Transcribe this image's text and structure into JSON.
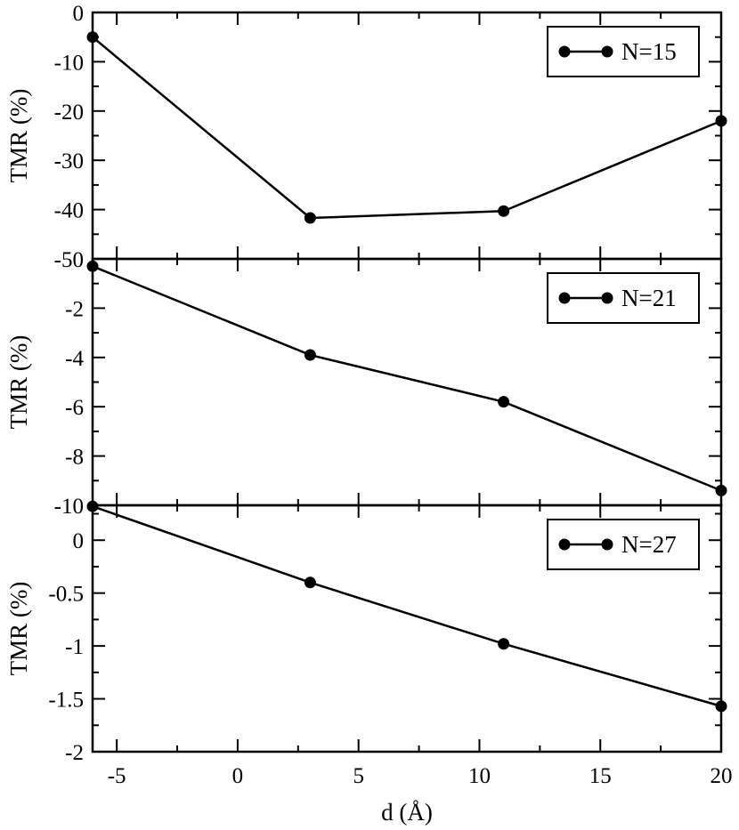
{
  "chart_data": [
    {
      "type": "line",
      "xlabel": "",
      "ylabel": "TMR (%)",
      "xlim": [
        -6,
        20
      ],
      "ylim": [
        -50,
        0
      ],
      "yticks": [
        0,
        -10,
        -20,
        -30,
        -40,
        -50
      ],
      "grid": false,
      "legend_position": "top-right",
      "series": [
        {
          "name": "N=15",
          "x": [
            -6,
            3,
            11,
            20
          ],
          "y": [
            -5,
            -41.7,
            -40.3,
            -22
          ]
        }
      ]
    },
    {
      "type": "line",
      "xlabel": "",
      "ylabel": "TMR (%)",
      "xlim": [
        -6,
        20
      ],
      "ylim": [
        -10,
        0
      ],
      "yticks": [
        -2,
        -4,
        -6,
        -8,
        -10
      ],
      "grid": false,
      "legend_position": "top-right",
      "series": [
        {
          "name": "N=21",
          "x": [
            -6,
            3,
            11,
            20
          ],
          "y": [
            -0.3,
            -3.9,
            -5.8,
            -9.4
          ]
        }
      ]
    },
    {
      "type": "line",
      "xlabel": "d (Å)",
      "ylabel": "TMR (%)",
      "xlim": [
        -6,
        20
      ],
      "ylim": [
        -2,
        0.33
      ],
      "yticks": [
        0,
        -0.5,
        -1,
        -1.5,
        -2
      ],
      "xticks": [
        -5,
        0,
        5,
        10,
        15,
        20
      ],
      "grid": false,
      "legend_position": "top-right",
      "series": [
        {
          "name": "N=27",
          "x": [
            -6,
            3,
            11,
            20
          ],
          "y": [
            0.32,
            -0.4,
            -0.98,
            -1.57
          ]
        }
      ]
    }
  ]
}
